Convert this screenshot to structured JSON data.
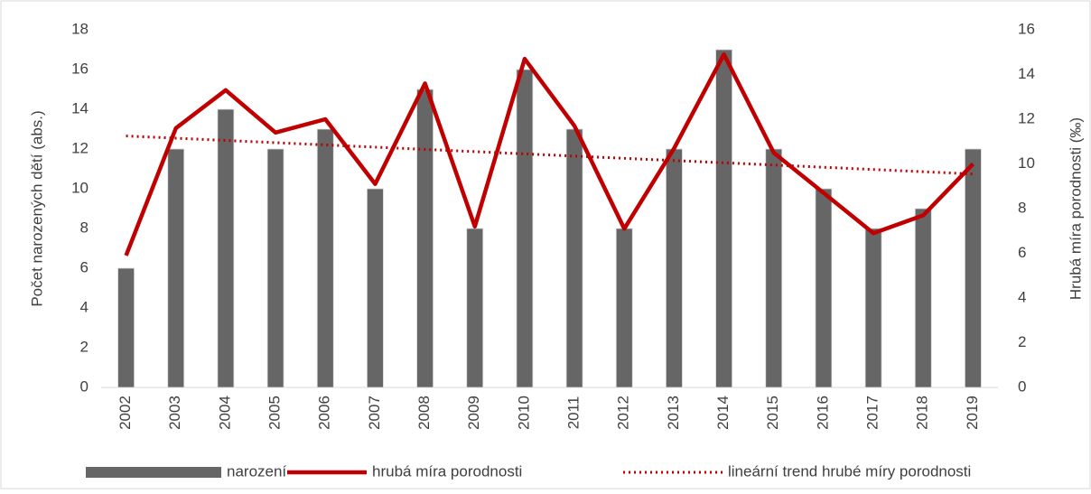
{
  "chart_data": {
    "type": "bar_line",
    "categories": [
      "2002",
      "2003",
      "2004",
      "2005",
      "2006",
      "2007",
      "2008",
      "2009",
      "2010",
      "2011",
      "2012",
      "2013",
      "2014",
      "2015",
      "2016",
      "2017",
      "2018",
      "2019"
    ],
    "y_label": "Počet narozených dětí (abs.)",
    "y2_label": "Hrubá míra porodnosti (‰)",
    "ylim": [
      0,
      18
    ],
    "yticks": [
      0,
      2,
      4,
      6,
      8,
      10,
      12,
      14,
      16,
      18
    ],
    "y2lim": [
      0,
      16
    ],
    "y2ticks": [
      0,
      2,
      4,
      6,
      8,
      10,
      12,
      14,
      16
    ],
    "series": [
      {
        "name": "narození",
        "type": "bar",
        "color": "#666666",
        "values": [
          6,
          12,
          14,
          12,
          13,
          10,
          15,
          8,
          16,
          13,
          8,
          12,
          17,
          12,
          10,
          8,
          9,
          12
        ]
      },
      {
        "name": "hrubá míra porodnosti",
        "type": "line",
        "axis": "y2",
        "color": "#c00000",
        "line_style": "solid",
        "values": [
          5.9,
          11.6,
          13.3,
          11.4,
          12.0,
          9.1,
          13.6,
          7.2,
          14.7,
          11.7,
          7.1,
          10.7,
          14.9,
          10.5,
          8.7,
          6.9,
          7.7,
          10.0
        ]
      },
      {
        "name": "lineární trend hrubé míry porodnosti",
        "type": "line",
        "axis": "y2",
        "color": "#c00000",
        "line_style": "dotted",
        "values": [
          11.25,
          11.15,
          11.05,
          10.95,
          10.85,
          10.75,
          10.65,
          10.55,
          10.45,
          10.35,
          10.25,
          10.15,
          10.05,
          9.95,
          9.85,
          9.75,
          9.65,
          9.55
        ]
      }
    ]
  }
}
